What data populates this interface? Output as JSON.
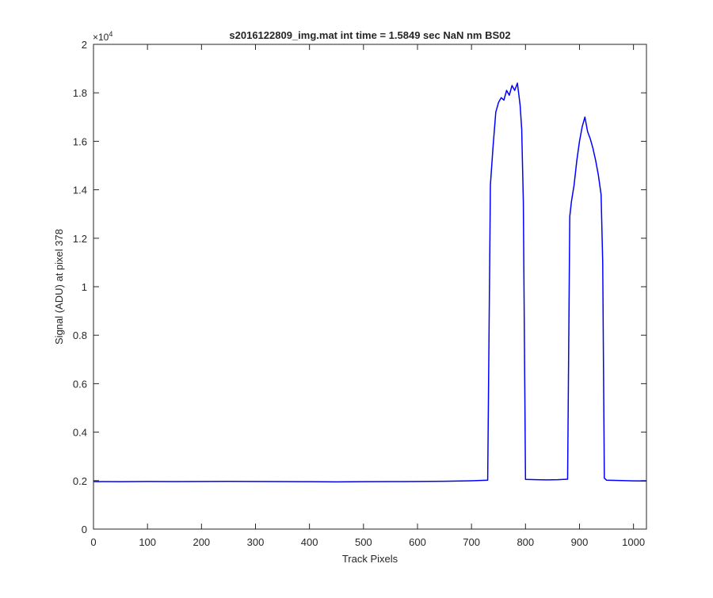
{
  "chart_data": {
    "type": "line",
    "title": "s2016122809_img.mat int time = 1.5849 sec  NaN nm BS02",
    "xlabel": "Track Pixels",
    "ylabel": "Signal (ADU) at pixel 378",
    "y_exponent_label": "×10",
    "y_exponent_power": "4",
    "xlim": [
      0,
      1024
    ],
    "ylim": [
      0,
      20000
    ],
    "x_ticks": [
      0,
      100,
      200,
      300,
      400,
      500,
      600,
      700,
      800,
      900,
      1000
    ],
    "x_tick_labels": [
      "0",
      "100",
      "200",
      "300",
      "400",
      "500",
      "600",
      "700",
      "800",
      "900",
      "1000"
    ],
    "y_ticks": [
      0,
      2000,
      4000,
      6000,
      8000,
      10000,
      12000,
      14000,
      16000,
      18000,
      20000
    ],
    "y_tick_labels": [
      "0",
      "0.2",
      "0.4",
      "0.6",
      "0.8",
      "1",
      "1.2",
      "1.4",
      "1.6",
      "1.8",
      "2"
    ],
    "grid": false,
    "series": [
      {
        "color": "#0000ff",
        "x": [
          0,
          50,
          100,
          150,
          200,
          250,
          300,
          350,
          400,
          450,
          500,
          550,
          600,
          650,
          700,
          730,
          735,
          740,
          745,
          750,
          755,
          760,
          765,
          770,
          775,
          780,
          785,
          790,
          793,
          796,
          800,
          820,
          840,
          860,
          878,
          882,
          885,
          890,
          895,
          900,
          905,
          910,
          915,
          920,
          925,
          930,
          935,
          940,
          943,
          946,
          950,
          980,
          1000,
          1024
        ],
        "y": [
          1960,
          1955,
          1965,
          1960,
          1965,
          1970,
          1965,
          1960,
          1955,
          1950,
          1955,
          1960,
          1965,
          1975,
          1995,
          2020,
          14200,
          15800,
          17200,
          17600,
          17800,
          17700,
          18100,
          17900,
          18300,
          18100,
          18400,
          17500,
          16500,
          13500,
          2050,
          2040,
          2030,
          2040,
          2060,
          12900,
          13500,
          14200,
          15200,
          16000,
          16600,
          17000,
          16400,
          16100,
          15700,
          15200,
          14600,
          13800,
          11000,
          2100,
          2020,
          2000,
          1990,
          1985
        ]
      }
    ]
  }
}
